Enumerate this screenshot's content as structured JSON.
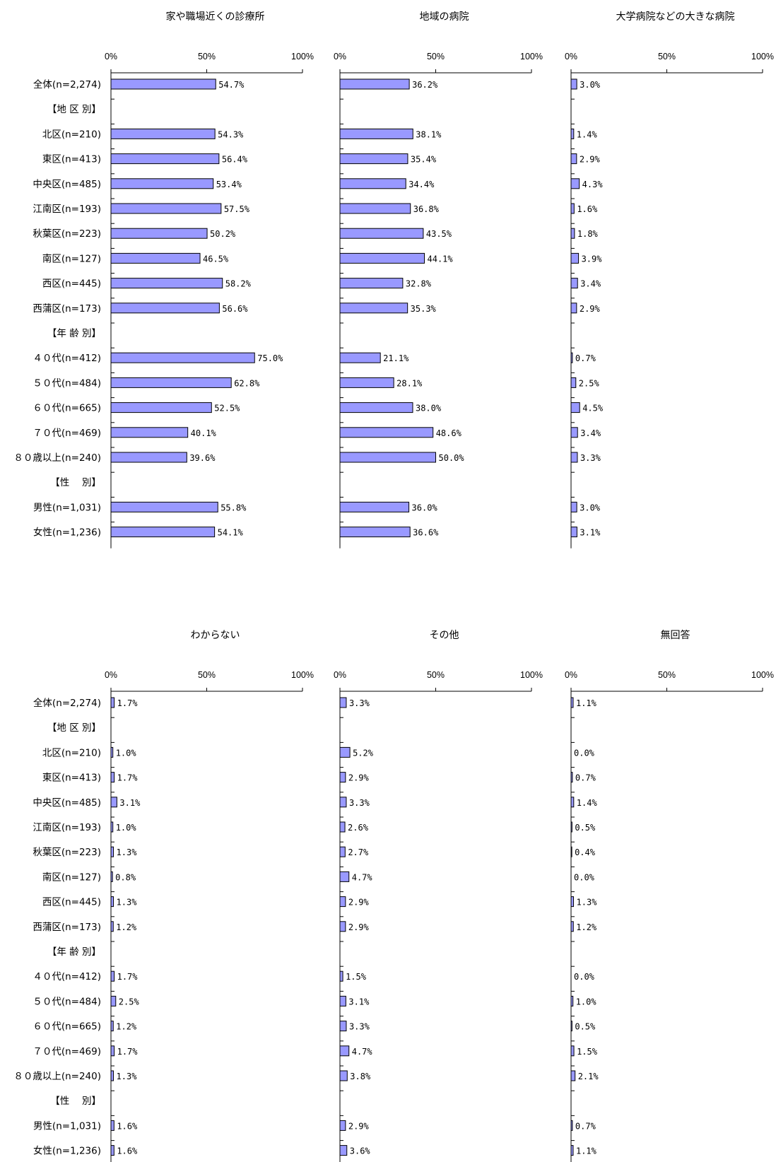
{
  "chart_data": {
    "type": "bar",
    "orientation": "horizontal",
    "categories": [
      "全体(n=2,274)",
      "【地 区 別】",
      "北区(n=210)",
      "東区(n=413)",
      "中央区(n=485)",
      "江南区(n=193)",
      "秋葉区(n=223)",
      "南区(n=127)",
      "西区(n=445)",
      "西蒲区(n=173)",
      "【年 齢 別】",
      "４０代(n=412)",
      "５０代(n=484)",
      "６０代(n=665)",
      "７０代(n=469)",
      "８０歳以上(n=240)",
      "【性　 別】",
      "男性(n=1,031)",
      "女性(n=1,236)"
    ],
    "xlim": [
      0,
      100
    ],
    "xticks": [
      "0%",
      "50%",
      "100%"
    ],
    "bar_color": "#9999ff",
    "panels": [
      {
        "title": "家や職場近くの診療所",
        "values": [
          54.7,
          null,
          54.3,
          56.4,
          53.4,
          57.5,
          50.2,
          46.5,
          58.2,
          56.6,
          null,
          75.0,
          62.8,
          52.5,
          40.1,
          39.6,
          null,
          55.8,
          54.1
        ],
        "labels": [
          "54.7%",
          "",
          "54.3%",
          "56.4%",
          "53.4%",
          "57.5%",
          "50.2%",
          "46.5%",
          "58.2%",
          "56.6%",
          "",
          "75.0%",
          "62.8%",
          "52.5%",
          "40.1%",
          "39.6%",
          "",
          "55.8%",
          "54.1%"
        ]
      },
      {
        "title": "地域の病院",
        "values": [
          36.2,
          null,
          38.1,
          35.4,
          34.4,
          36.8,
          43.5,
          44.1,
          32.8,
          35.3,
          null,
          21.1,
          28.1,
          38.0,
          48.6,
          50.0,
          null,
          36.0,
          36.6
        ],
        "labels": [
          "36.2%",
          "",
          "38.1%",
          "35.4%",
          "34.4%",
          "36.8%",
          "43.5%",
          "44.1%",
          "32.8%",
          "35.3%",
          "",
          "21.1%",
          "28.1%",
          "38.0%",
          "48.6%",
          "50.0%",
          "",
          "36.0%",
          "36.6%"
        ]
      },
      {
        "title": "大学病院などの大きな病院",
        "values": [
          3.0,
          null,
          1.4,
          2.9,
          4.3,
          1.6,
          1.8,
          3.9,
          3.4,
          2.9,
          null,
          0.7,
          2.5,
          4.5,
          3.4,
          3.3,
          null,
          3.0,
          3.1
        ],
        "labels": [
          "3.0%",
          "",
          "1.4%",
          "2.9%",
          "4.3%",
          "1.6%",
          "1.8%",
          "3.9%",
          "3.4%",
          "2.9%",
          "",
          "0.7%",
          "2.5%",
          "4.5%",
          "3.4%",
          "3.3%",
          "",
          "3.0%",
          "3.1%"
        ]
      },
      {
        "title": "わからない",
        "values": [
          1.7,
          null,
          1.0,
          1.7,
          3.1,
          1.0,
          1.3,
          0.8,
          1.3,
          1.2,
          null,
          1.7,
          2.5,
          1.2,
          1.7,
          1.3,
          null,
          1.6,
          1.6
        ],
        "labels": [
          "1.7%",
          "",
          "1.0%",
          "1.7%",
          "3.1%",
          "1.0%",
          "1.3%",
          "0.8%",
          "1.3%",
          "1.2%",
          "",
          "1.7%",
          "2.5%",
          "1.2%",
          "1.7%",
          "1.3%",
          "",
          "1.6%",
          "1.6%"
        ]
      },
      {
        "title": "その他",
        "values": [
          3.3,
          null,
          5.2,
          2.9,
          3.3,
          2.6,
          2.7,
          4.7,
          2.9,
          2.9,
          null,
          1.5,
          3.1,
          3.3,
          4.7,
          3.8,
          null,
          2.9,
          3.6
        ],
        "labels": [
          "3.3%",
          "",
          "5.2%",
          "2.9%",
          "3.3%",
          "2.6%",
          "2.7%",
          "4.7%",
          "2.9%",
          "2.9%",
          "",
          "1.5%",
          "3.1%",
          "3.3%",
          "4.7%",
          "3.8%",
          "",
          "2.9%",
          "3.6%"
        ]
      },
      {
        "title": "無回答",
        "values": [
          1.1,
          null,
          0.0,
          0.7,
          1.4,
          0.5,
          0.4,
          0.0,
          1.3,
          1.2,
          null,
          0.0,
          1.0,
          0.5,
          1.5,
          2.1,
          null,
          0.7,
          1.1
        ],
        "labels": [
          "1.1%",
          "",
          "0.0%",
          "0.7%",
          "1.4%",
          "0.5%",
          "0.4%",
          "0.0%",
          "1.3%",
          "1.2%",
          "",
          "0.0%",
          "1.0%",
          "0.5%",
          "1.5%",
          "2.1%",
          "",
          "0.7%",
          "1.1%"
        ]
      }
    ]
  }
}
